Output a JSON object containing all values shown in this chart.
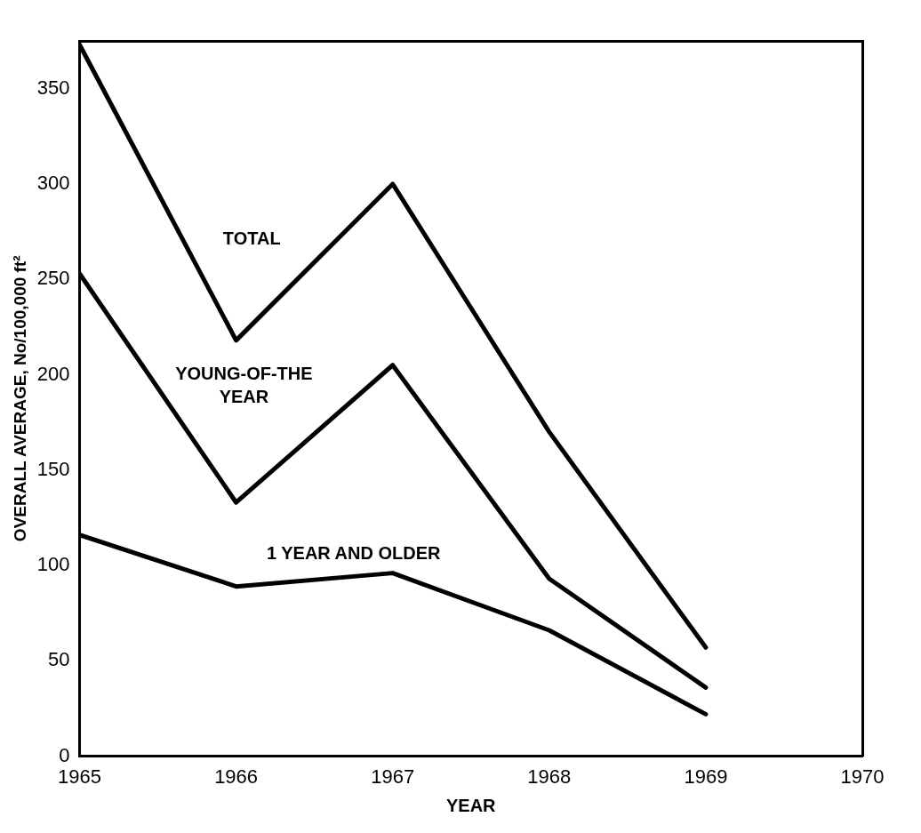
{
  "chart_data": {
    "type": "line",
    "xlabel": "YEAR",
    "ylabel": "OVERALL AVERAGE, No/100,000 ft²",
    "x": [
      1965,
      1966,
      1967,
      1968,
      1969
    ],
    "series": [
      {
        "name": "TOTAL",
        "color": "#000000",
        "values": [
          373,
          218,
          300,
          170,
          57
        ]
      },
      {
        "name": "YOUNG-OF-THE YEAR",
        "color": "#000000",
        "values": [
          253,
          133,
          205,
          93,
          36
        ]
      },
      {
        "name": "1 YEAR AND OLDER",
        "color": "#000000",
        "values": [
          116,
          89,
          96,
          66,
          22
        ]
      }
    ],
    "xlim": [
      1965,
      1970
    ],
    "xticks": [
      1965,
      1966,
      1967,
      1968,
      1969,
      1970
    ],
    "ylim": [
      0,
      375
    ],
    "yticks": [
      0,
      50,
      100,
      150,
      200,
      250,
      300,
      350
    ],
    "grid": false,
    "legend": false,
    "marker": "none",
    "line_style": "solid"
  }
}
